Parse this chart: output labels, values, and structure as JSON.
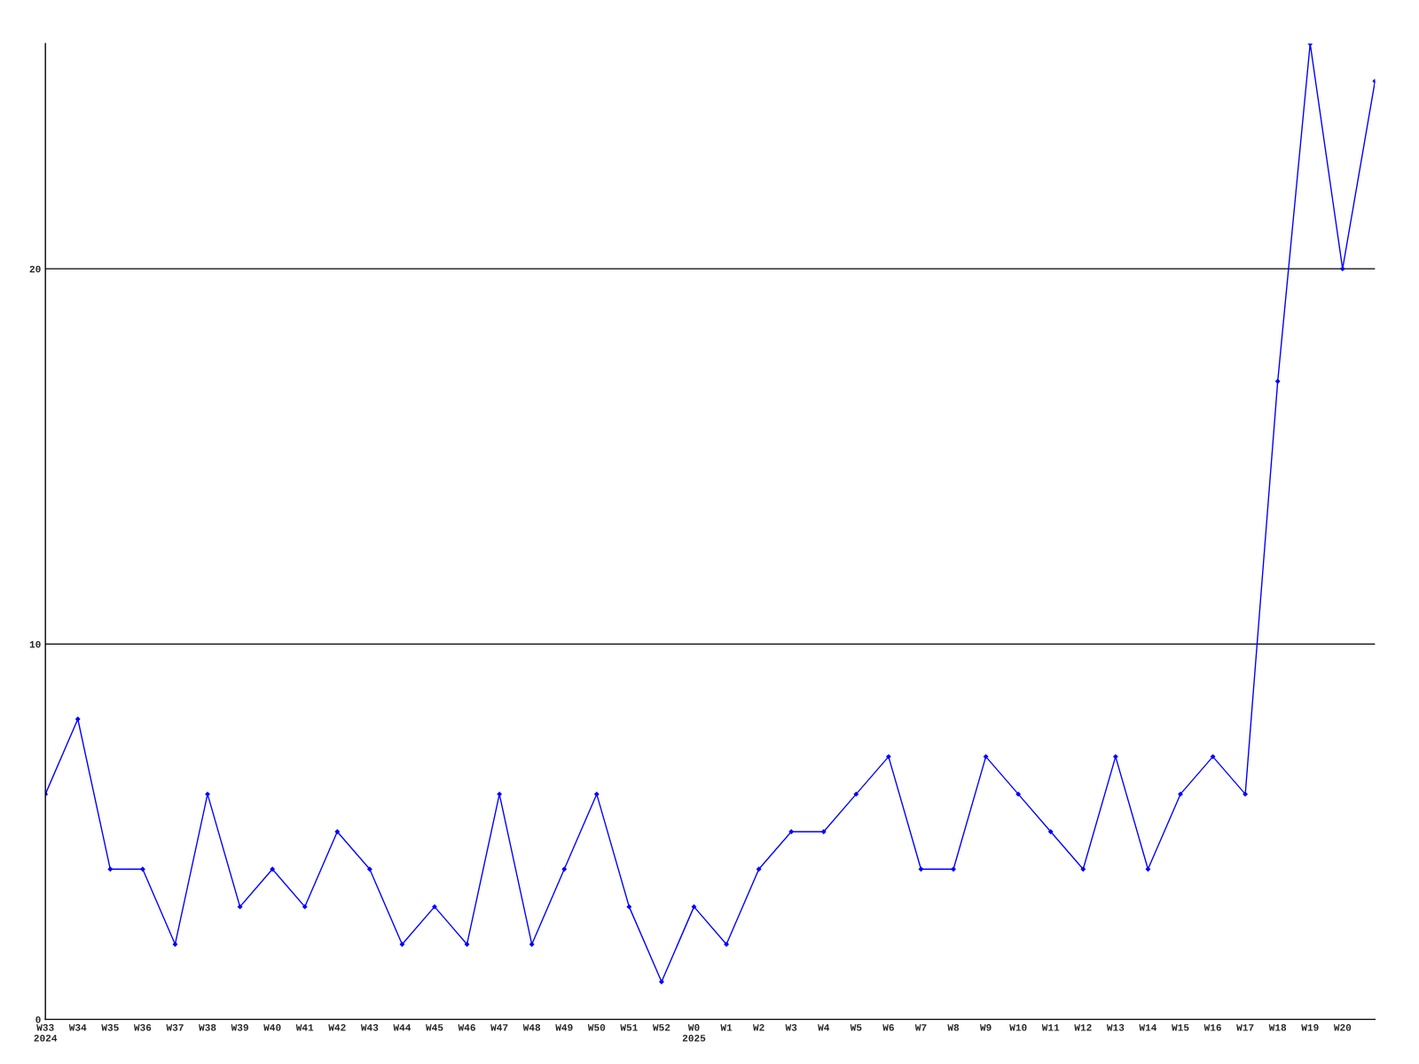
{
  "chart_data": {
    "type": "line",
    "categories": [
      "W33\n2024",
      "W34",
      "W35",
      "W36",
      "W37",
      "W38",
      "W39",
      "W40",
      "W41",
      "W42",
      "W43",
      "W44",
      "W45",
      "W46",
      "W47",
      "W48",
      "W49",
      "W50",
      "W51",
      "W52",
      "W0\n2025",
      "W1",
      "W2",
      "W3",
      "W4",
      "W5",
      "W6",
      "W7",
      "W8",
      "W9",
      "W10",
      "W11",
      "W12",
      "W13",
      "W14",
      "W15",
      "W16",
      "W17",
      "W18",
      "W19",
      "W20",
      null
    ],
    "series": [
      {
        "color": "#0000ff",
        "values": [
          6,
          8,
          4,
          4,
          2,
          6,
          3,
          4,
          3,
          5,
          4,
          2,
          3,
          2,
          6,
          2,
          4,
          6,
          3,
          1,
          3,
          2,
          4,
          5,
          5,
          6,
          7,
          4,
          4,
          7,
          6,
          5,
          4,
          7,
          4,
          6,
          7,
          6,
          17,
          26,
          20,
          25
        ]
      }
    ],
    "ylim": [
      0,
      26
    ],
    "yticks": [
      0,
      10,
      20
    ],
    "grid": "y",
    "marker": "diamond",
    "line_style": "solid"
  }
}
